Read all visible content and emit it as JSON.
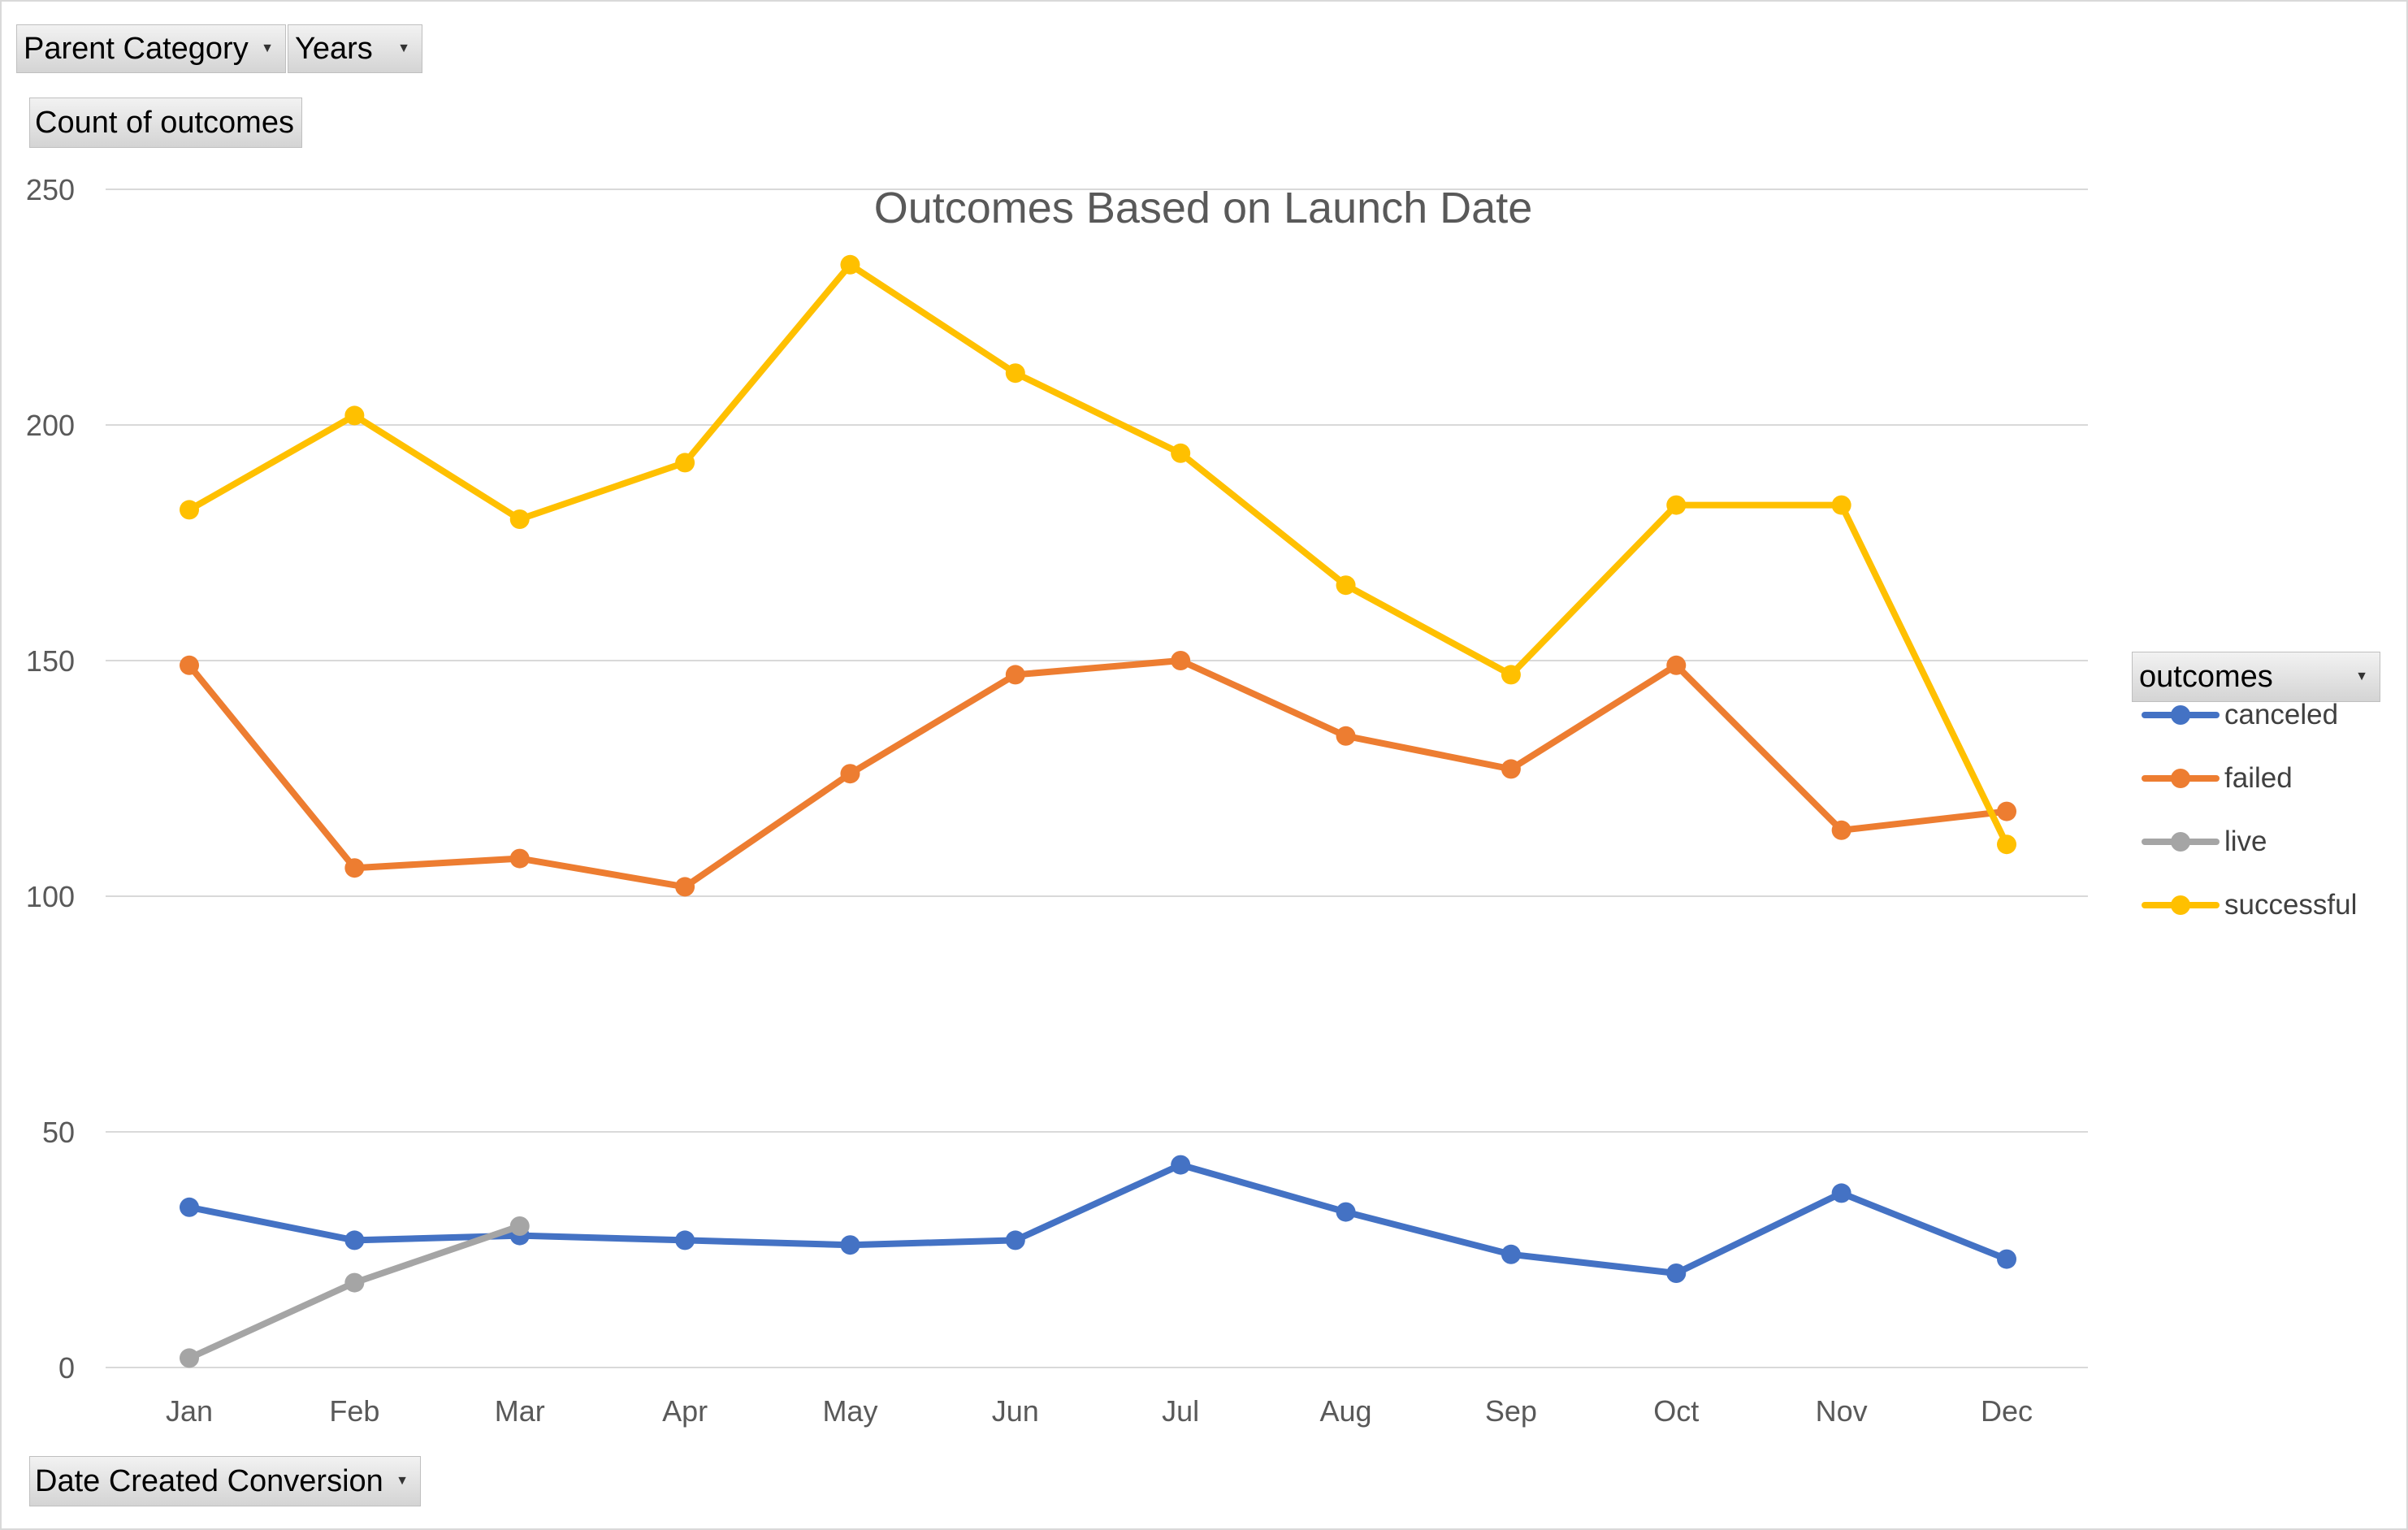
{
  "pivot_fields": {
    "parent_category": "Parent Category",
    "years": "Years",
    "values_field": "Count of outcomes",
    "axis_field": "Date Created Conversion",
    "legend_field": "outcomes"
  },
  "colors": {
    "canceled": "#4472c4",
    "failed": "#ed7d31",
    "live": "#a5a5a5",
    "successful": "#ffc000",
    "grid": "#d9d9d9",
    "axis_text": "#595959"
  },
  "chart_data": {
    "type": "line",
    "title": "Outcomes Based on Launch Date",
    "xlabel": "",
    "ylabel": "",
    "ylim": [
      0,
      250
    ],
    "yticks": [
      0,
      50,
      100,
      150,
      200,
      250
    ],
    "grid": true,
    "legend_position": "right",
    "categories": [
      "Jan",
      "Feb",
      "Mar",
      "Apr",
      "May",
      "Jun",
      "Jul",
      "Aug",
      "Sep",
      "Oct",
      "Nov",
      "Dec"
    ],
    "series": [
      {
        "name": "canceled",
        "color": "#4472c4",
        "values": [
          34,
          27,
          28,
          27,
          26,
          27,
          43,
          33,
          24,
          20,
          37,
          23
        ]
      },
      {
        "name": "failed",
        "color": "#ed7d31",
        "values": [
          149,
          106,
          108,
          102,
          126,
          147,
          150,
          134,
          127,
          149,
          114,
          118
        ]
      },
      {
        "name": "live",
        "color": "#a5a5a5",
        "values": [
          2,
          18,
          30,
          null,
          null,
          null,
          null,
          null,
          null,
          null,
          null,
          null
        ]
      },
      {
        "name": "successful",
        "color": "#ffc000",
        "values": [
          182,
          202,
          180,
          192,
          234,
          211,
          194,
          166,
          147,
          183,
          183,
          111
        ]
      }
    ]
  }
}
